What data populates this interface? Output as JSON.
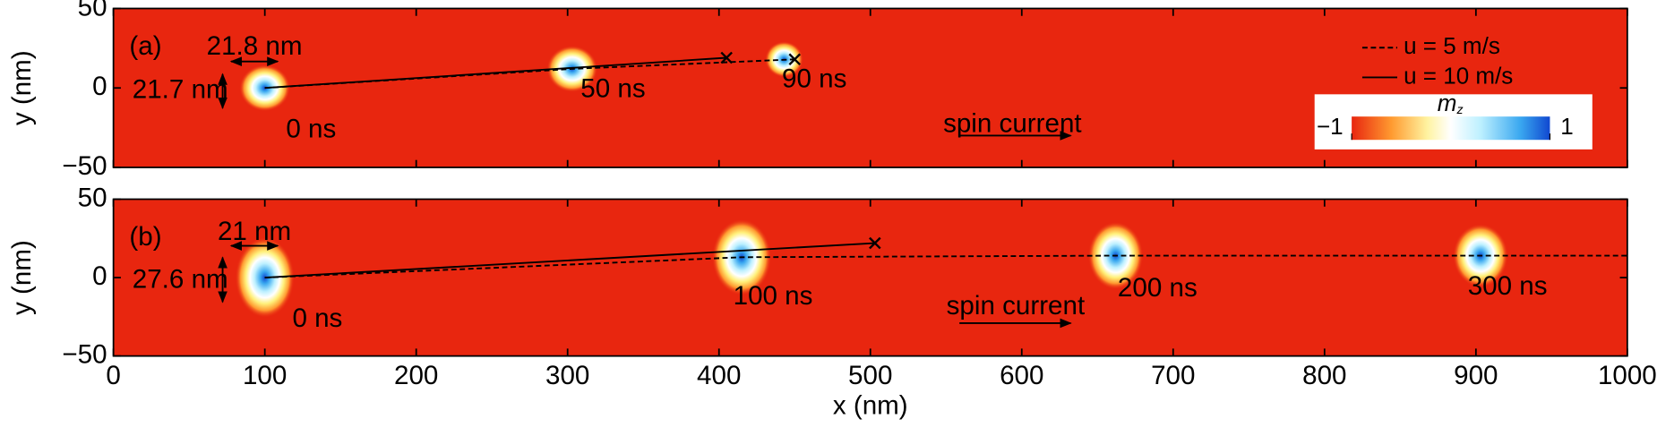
{
  "chart_data": [
    {
      "type": "skyrmion-map",
      "panel_label": "(a)",
      "ylabel": "y (nm)",
      "xlim": [
        0,
        1000
      ],
      "ylim": [
        -50,
        50
      ],
      "yticks": [
        {
          "value": -50,
          "label": "−50"
        },
        0,
        50
      ],
      "background_color": "#e8260f",
      "skyrmions": {
        "x": [
          100,
          303,
          443
        ],
        "y": [
          0,
          12,
          18
        ],
        "labels": [
          "0 ns",
          "50 ns",
          "90 ns"
        ]
      },
      "trajectories": [
        {
          "name": "u = 5 m/s",
          "dash": true,
          "color": "#000000",
          "end_marker": true,
          "x": [
            100,
            303,
            450
          ],
          "y": [
            0,
            12,
            18
          ]
        },
        {
          "name": "u = 10 m/s",
          "dash": false,
          "color": "#000000",
          "end_marker": true,
          "x": [
            100,
            405
          ],
          "y": [
            0,
            19
          ]
        }
      ],
      "annotations": [
        "21.8 nm",
        "21.7 nm",
        "spin current"
      ],
      "colorbar": {
        "label": "m",
        "label_sub": "z",
        "lim": [
          -1,
          1
        ],
        "ticks": [
          {
            "value": -1,
            "label": "−1"
          },
          1
        ]
      }
    },
    {
      "type": "skyrmion-map",
      "panel_label": "(b)",
      "ylabel": "y (nm)",
      "xlabel": "x (nm)",
      "xlim": [
        0,
        1000
      ],
      "ylim": [
        -50,
        50
      ],
      "xticks": [
        0,
        100,
        200,
        300,
        400,
        500,
        600,
        700,
        800,
        900,
        1000
      ],
      "yticks": [
        {
          "value": -50,
          "label": "−50"
        },
        0,
        50
      ],
      "background_color": "#e8260f",
      "skyrmions": {
        "x": [
          100,
          415,
          662,
          903
        ],
        "y": [
          0,
          13,
          14,
          14
        ],
        "labels": [
          "0 ns",
          "100 ns",
          "200 ns",
          "300 ns"
        ]
      },
      "trajectories": [
        {
          "dash": true,
          "color": "#000000",
          "end_marker": false,
          "x": [
            100,
            415,
            662,
            903,
            1000
          ],
          "y": [
            0,
            13,
            14,
            14,
            14
          ]
        },
        {
          "dash": false,
          "color": "#000000",
          "end_marker": true,
          "x": [
            100,
            503
          ],
          "y": [
            0,
            22
          ]
        }
      ],
      "annotations": [
        "21 nm",
        "27.6 nm",
        "spin current"
      ]
    }
  ]
}
